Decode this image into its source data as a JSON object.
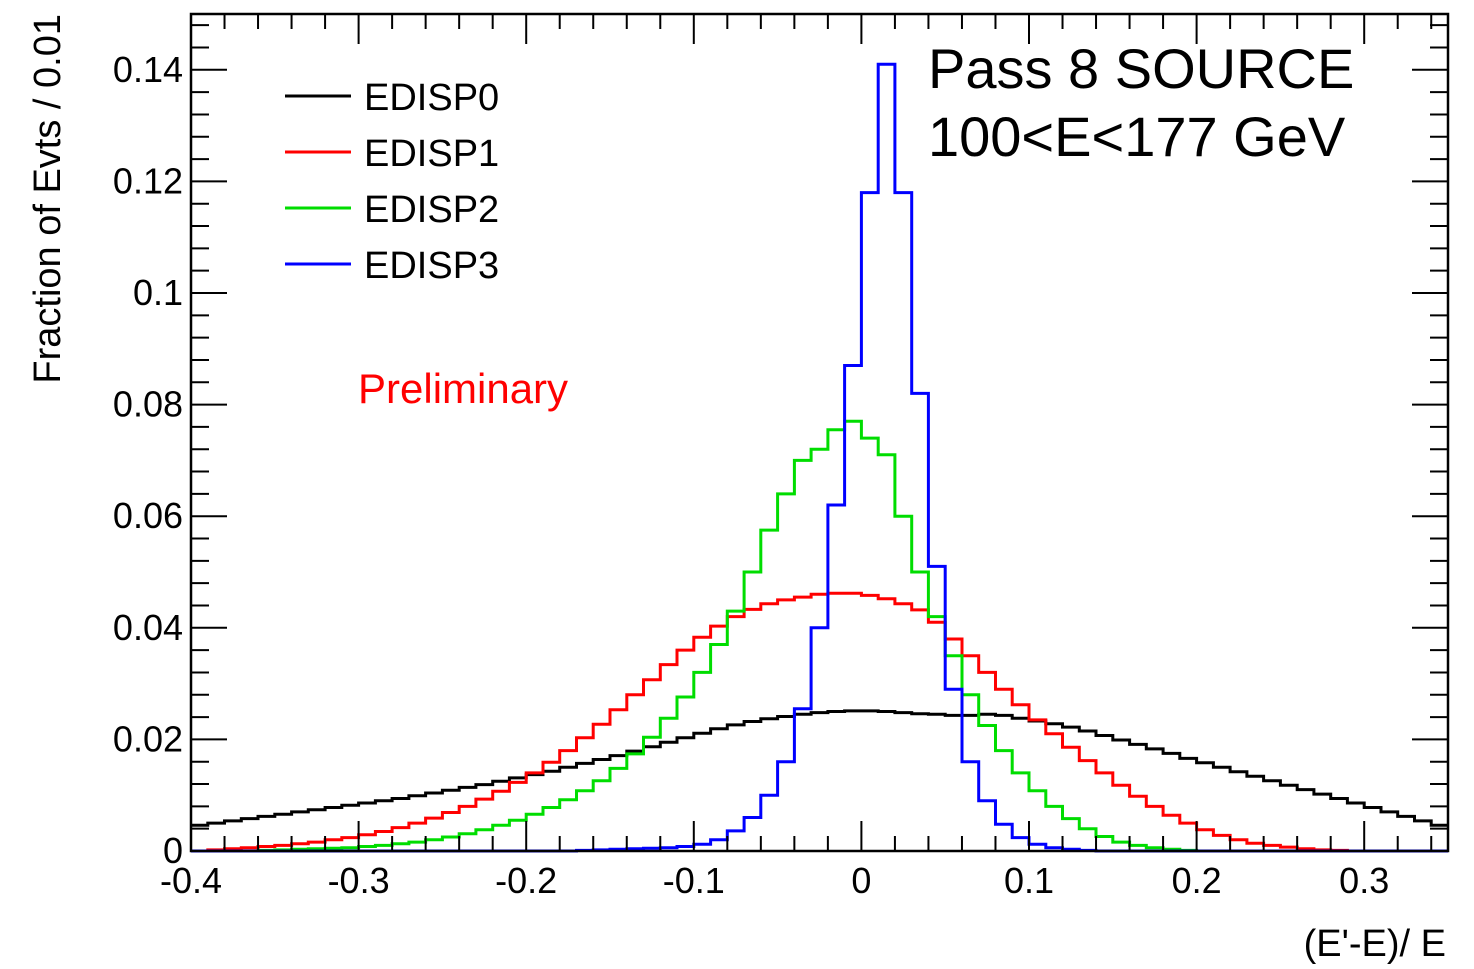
{
  "chart_data": {
    "type": "line",
    "title": "",
    "xlabel": "(E'-E)/ E",
    "ylabel": "Fraction of Evts / 0.01",
    "xlim": [
      -0.4,
      0.35
    ],
    "ylim": [
      0,
      0.15
    ],
    "x_ticks": [
      -0.4,
      -0.3,
      -0.2,
      -0.1,
      0,
      0.1,
      0.2,
      0.3
    ],
    "x_tick_labels": [
      "-0.4",
      "-0.3",
      "-0.2",
      "-0.1",
      "0",
      "0.1",
      "0.2",
      "0.3"
    ],
    "y_ticks": [
      0,
      0.02,
      0.04,
      0.06,
      0.08,
      0.1,
      0.12,
      0.14
    ],
    "y_tick_labels": [
      "0",
      "0.02",
      "0.04",
      "0.06",
      "0.08",
      "0.1",
      "0.12",
      "0.14"
    ],
    "grid": false,
    "legend_position": "top-left",
    "annotations": {
      "line1": "Pass 8 SOURCE",
      "line2": "100<E<177 GeV",
      "preliminary": "Preliminary"
    },
    "bin_edges_start": -0.4,
    "bin_width": 0.01,
    "series": [
      {
        "name": "EDISP0",
        "color": "#000000",
        "values": [
          0.0046,
          0.005,
          0.0054,
          0.0058,
          0.0062,
          0.0066,
          0.007,
          0.0074,
          0.0078,
          0.0082,
          0.0086,
          0.009,
          0.0094,
          0.0099,
          0.0104,
          0.0109,
          0.0114,
          0.0119,
          0.0125,
          0.0131,
          0.0137,
          0.0143,
          0.015,
          0.0157,
          0.0164,
          0.0171,
          0.0179,
          0.0187,
          0.0195,
          0.0203,
          0.0211,
          0.0219,
          0.0226,
          0.0232,
          0.0237,
          0.0241,
          0.0245,
          0.0248,
          0.025,
          0.0251,
          0.0251,
          0.025,
          0.0248,
          0.0246,
          0.0245,
          0.0243,
          0.0243,
          0.0245,
          0.0243,
          0.0238,
          0.0233,
          0.0228,
          0.0222,
          0.0215,
          0.0207,
          0.0199,
          0.0191,
          0.0183,
          0.0175,
          0.0166,
          0.0158,
          0.015,
          0.0142,
          0.0134,
          0.0126,
          0.0118,
          0.011,
          0.0102,
          0.0094,
          0.0086,
          0.0078,
          0.007,
          0.0062,
          0.0054,
          0.0046
        ]
      },
      {
        "name": "EDISP1",
        "color": "#ff0000",
        "values": [
          0.0,
          0.0002,
          0.0004,
          0.0006,
          0.0008,
          0.001,
          0.0013,
          0.0016,
          0.002,
          0.0024,
          0.0029,
          0.0035,
          0.0042,
          0.005,
          0.0059,
          0.0069,
          0.008,
          0.0093,
          0.0107,
          0.0123,
          0.014,
          0.0159,
          0.018,
          0.0203,
          0.0227,
          0.0253,
          0.028,
          0.0307,
          0.0334,
          0.036,
          0.0383,
          0.0403,
          0.042,
          0.0433,
          0.0443,
          0.045,
          0.0455,
          0.046,
          0.0462,
          0.0462,
          0.0458,
          0.0452,
          0.0443,
          0.0432,
          0.041,
          0.038,
          0.035,
          0.032,
          0.029,
          0.0262,
          0.0235,
          0.021,
          0.0186,
          0.0162,
          0.014,
          0.0118,
          0.0098,
          0.008,
          0.0064,
          0.005,
          0.0038,
          0.0028,
          0.002,
          0.0014,
          0.001,
          0.0007,
          0.0004,
          0.0002,
          0.0001,
          0.0,
          0.0,
          0.0,
          0.0,
          0.0,
          0.0
        ]
      },
      {
        "name": "EDISP2",
        "color": "#00dd00",
        "values": [
          0.0,
          0.0,
          0.0,
          0.0,
          0.0001,
          0.0002,
          0.0003,
          0.0004,
          0.0005,
          0.0006,
          0.0008,
          0.001,
          0.0013,
          0.0016,
          0.002,
          0.0025,
          0.0031,
          0.0038,
          0.0046,
          0.0055,
          0.0066,
          0.0078,
          0.0092,
          0.0108,
          0.0126,
          0.0148,
          0.0174,
          0.0204,
          0.0238,
          0.0276,
          0.032,
          0.037,
          0.043,
          0.05,
          0.0575,
          0.064,
          0.07,
          0.072,
          0.0755,
          0.077,
          0.074,
          0.071,
          0.06,
          0.05,
          0.042,
          0.035,
          0.028,
          0.0225,
          0.018,
          0.014,
          0.0108,
          0.008,
          0.0058,
          0.004,
          0.0026,
          0.0016,
          0.001,
          0.0006,
          0.0003,
          0.0001,
          0.0,
          0.0,
          0.0,
          0.0,
          0.0,
          0.0,
          0.0,
          0.0,
          0.0,
          0.0,
          0.0,
          0.0,
          0.0,
          0.0,
          0.0
        ]
      },
      {
        "name": "EDISP3",
        "color": "#0000ff",
        "values": [
          0.0,
          0.0,
          0.0,
          0.0,
          0.0,
          0.0,
          0.0,
          0.0,
          0.0,
          0.0,
          0.0,
          0.0,
          0.0,
          0.0,
          0.0,
          0.0,
          0.0,
          0.0,
          0.0,
          0.0,
          0.0,
          0.0,
          0.0,
          0.0001,
          0.0002,
          0.0003,
          0.0004,
          0.0005,
          0.0006,
          0.0008,
          0.0012,
          0.002,
          0.0036,
          0.006,
          0.01,
          0.016,
          0.0255,
          0.04,
          0.062,
          0.087,
          0.118,
          0.141,
          0.118,
          0.082,
          0.051,
          0.029,
          0.016,
          0.009,
          0.0048,
          0.0024,
          0.0012,
          0.0006,
          0.0003,
          0.0001,
          0.0,
          0.0,
          0.0,
          0.0,
          0.0,
          0.0,
          0.0,
          0.0,
          0.0,
          0.0,
          0.0,
          0.0,
          0.0,
          0.0,
          0.0,
          0.0,
          0.0,
          0.0,
          0.0,
          0.0,
          0.0
        ]
      }
    ]
  }
}
